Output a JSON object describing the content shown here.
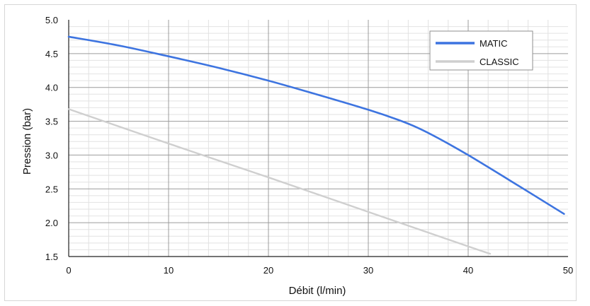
{
  "chart_data": {
    "type": "line",
    "title": "",
    "xlabel": "Débit (l/min)",
    "ylabel": "Pression (bar)",
    "xlim": [
      0,
      50
    ],
    "ylim": [
      1.5,
      5.0
    ],
    "x_ticks": [
      "0",
      "10",
      "20",
      "30",
      "40",
      "50"
    ],
    "y_ticks": [
      "1.5",
      "2.0",
      "2.5",
      "3.0",
      "3.5",
      "4.0",
      "4.5",
      "5.0"
    ],
    "grid": true,
    "legend_position": "top-right",
    "series": [
      {
        "name": "MATIC",
        "color": "#3d74e0",
        "points": [
          [
            0,
            4.75
          ],
          [
            5,
            4.62
          ],
          [
            10,
            4.46
          ],
          [
            15,
            4.29
          ],
          [
            20,
            4.1
          ],
          [
            25,
            3.89
          ],
          [
            30,
            3.67
          ],
          [
            33,
            3.52
          ],
          [
            35,
            3.4
          ],
          [
            37,
            3.25
          ],
          [
            40,
            3.0
          ],
          [
            45,
            2.55
          ],
          [
            49.6,
            2.13
          ]
        ]
      },
      {
        "name": "CLASSIC",
        "color": "#cfcfcf",
        "points": [
          [
            0,
            3.68
          ],
          [
            10,
            3.17
          ],
          [
            20,
            2.67
          ],
          [
            30,
            2.16
          ],
          [
            40,
            1.65
          ],
          [
            42.2,
            1.54
          ]
        ]
      }
    ]
  }
}
